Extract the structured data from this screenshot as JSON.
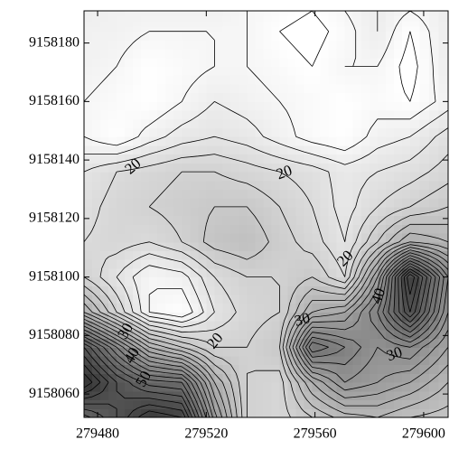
{
  "chart_data": {
    "type": "contour",
    "xlim": [
      279475,
      279609
    ],
    "ylim": [
      9158052,
      9158191
    ],
    "xticks": [
      279480,
      279520,
      279560,
      279600
    ],
    "yticks": [
      9158060,
      9158080,
      9158100,
      9158120,
      9158140,
      9158160,
      9158180
    ],
    "x": [
      279475,
      279487,
      279499,
      279511,
      279523,
      279535,
      279547,
      279559,
      279571,
      279583,
      279595,
      279609
    ],
    "y": [
      9158052,
      9158064,
      9158076,
      9158088,
      9158100,
      9158112,
      9158124,
      9158136,
      9158148,
      9158160,
      9158172,
      9158184,
      9158191
    ],
    "z": [
      [
        45,
        50,
        56,
        54,
        35,
        22,
        21,
        24,
        27,
        28,
        26,
        25
      ],
      [
        58,
        50,
        45,
        44,
        30,
        22,
        21,
        30,
        36,
        34,
        32,
        28
      ],
      [
        50,
        40,
        30,
        26,
        22,
        22,
        24,
        44,
        40,
        36,
        38,
        32
      ],
      [
        30,
        22,
        14,
        12,
        18,
        21,
        22,
        30,
        32,
        40,
        52,
        36
      ],
      [
        22,
        18,
        14,
        15,
        20,
        22,
        22,
        24,
        20,
        34,
        56,
        38
      ],
      [
        20,
        21,
        20,
        22,
        25,
        26,
        23,
        21,
        18,
        24,
        30,
        28
      ],
      [
        19,
        21,
        22,
        23,
        24,
        24,
        22,
        20,
        17,
        20,
        22,
        24
      ],
      [
        18,
        20,
        21,
        22,
        22,
        21,
        20,
        19,
        17,
        18,
        19,
        21
      ],
      [
        14,
        12,
        15,
        17,
        18,
        17,
        15,
        13,
        12,
        15,
        16,
        19
      ],
      [
        14,
        13,
        12,
        14,
        16,
        15,
        14,
        13,
        12,
        13,
        12,
        15
      ],
      [
        15,
        14,
        12,
        13,
        14,
        14,
        13,
        12,
        14,
        14,
        11,
        16
      ],
      [
        15,
        15,
        14,
        14,
        14,
        14,
        12,
        11,
        13,
        16,
        12,
        16
      ],
      [
        16,
        15,
        15,
        15,
        15,
        14,
        13,
        12,
        14,
        16,
        14,
        16
      ]
    ],
    "levels": [
      12,
      14,
      16,
      18,
      20,
      22,
      24,
      26,
      28,
      30,
      32,
      34,
      36,
      38,
      40,
      42,
      44,
      46,
      48,
      50,
      52,
      54,
      56,
      58
    ],
    "colormap": [
      "#ffffff",
      "#2e2e2e"
    ],
    "line_color": "#000000",
    "contour_labels": [
      20,
      20,
      20,
      20,
      30,
      40,
      30,
      30,
      40,
      50
    ]
  }
}
